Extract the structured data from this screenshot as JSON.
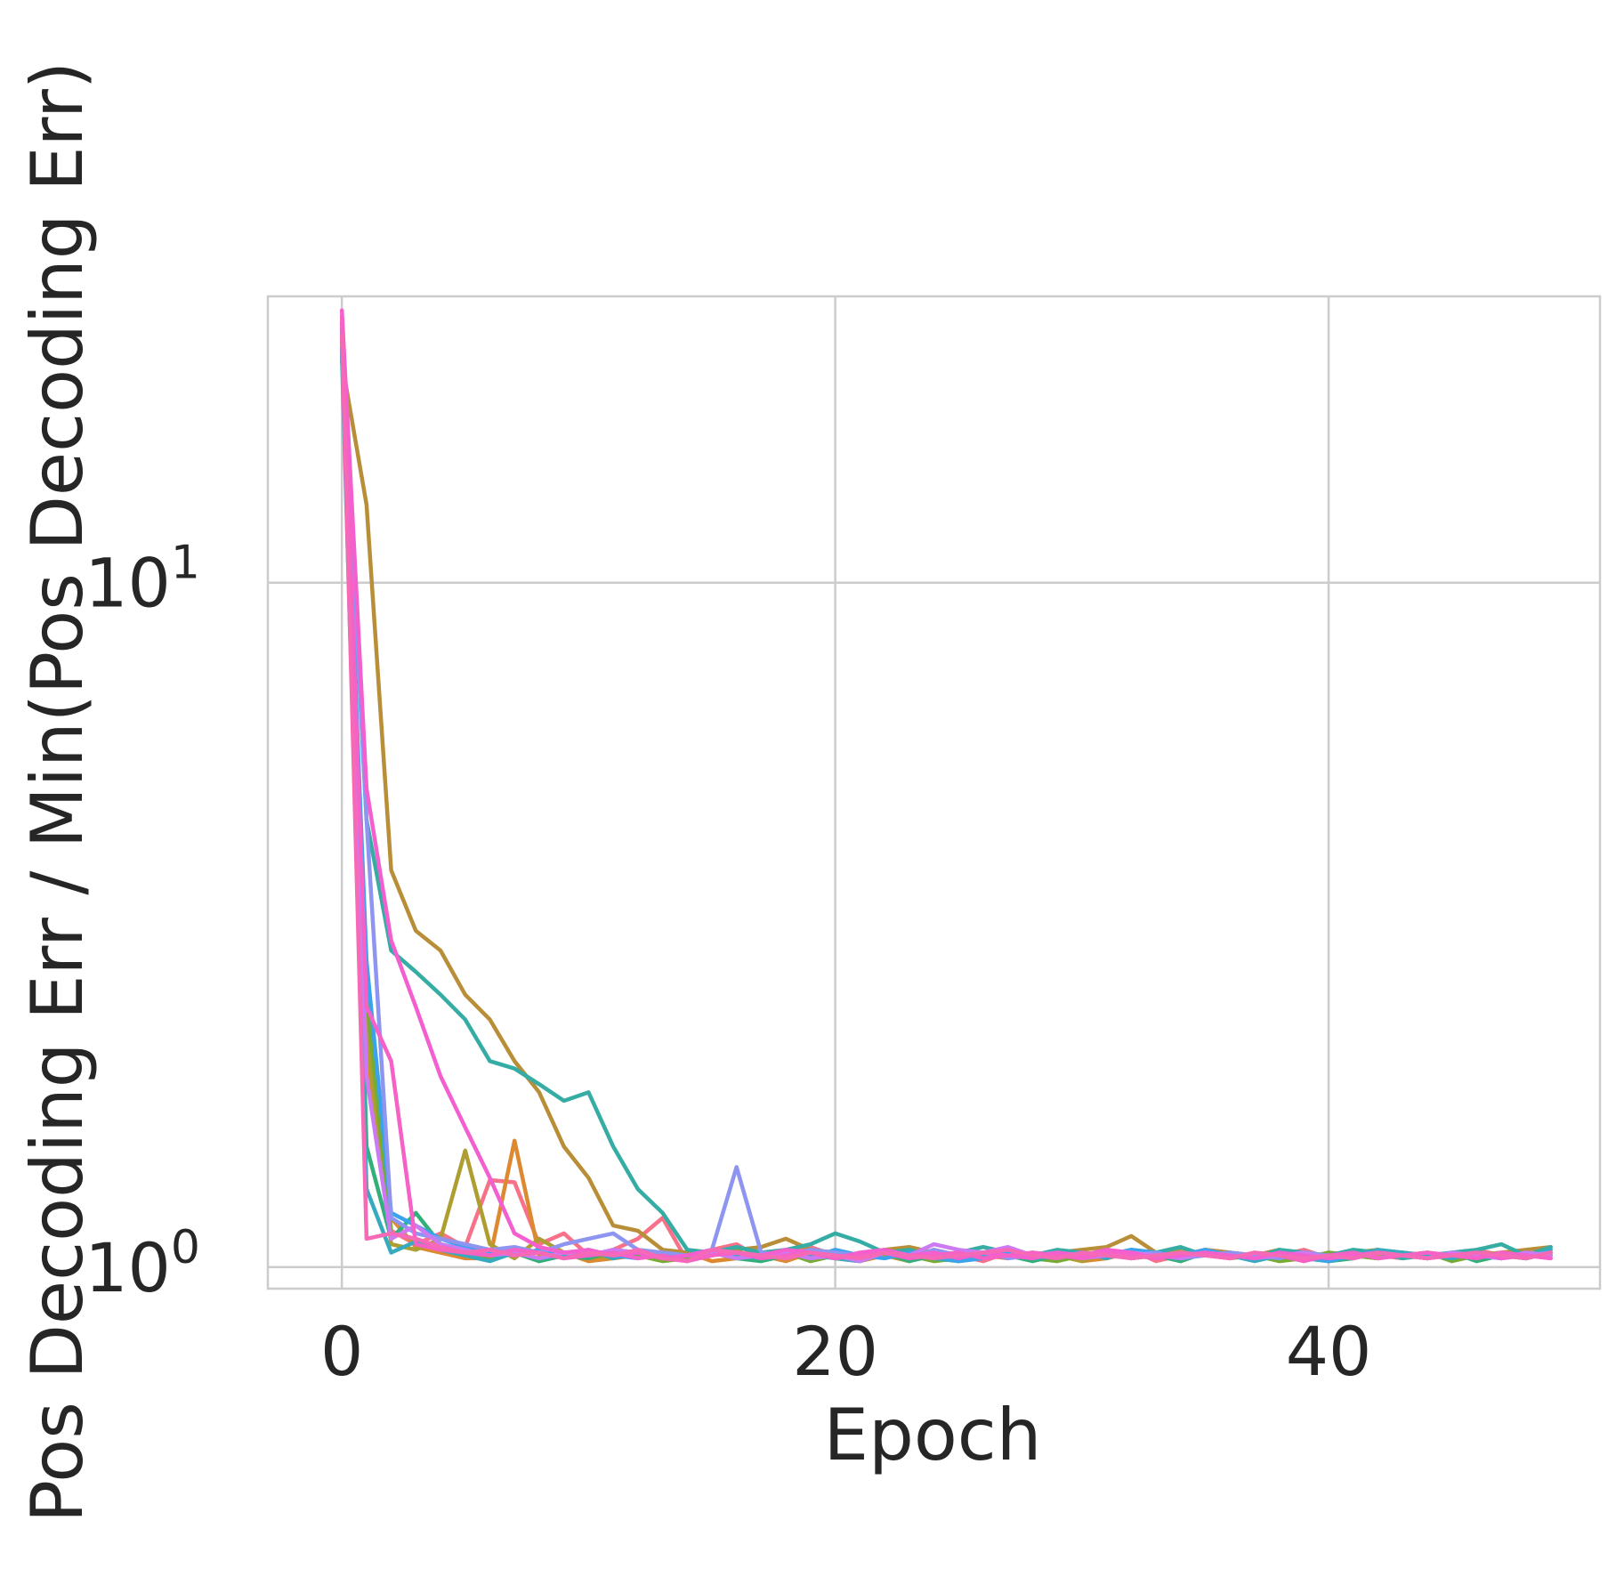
{
  "chart_data": {
    "type": "line",
    "title": "",
    "xlabel": "Epoch",
    "ylabel": "Pos Decoding Err / Min(Pos Decoding Err)",
    "xlim": [
      -3,
      51
    ],
    "ylim": [
      0.93,
      26.2
    ],
    "yscale": "log",
    "grid": true,
    "legend": "none",
    "x_ticks": [
      {
        "value": 0,
        "label": "0"
      },
      {
        "value": 20,
        "label": "20"
      },
      {
        "value": 40,
        "label": "40"
      }
    ],
    "y_ticks": [
      {
        "value": 1,
        "base": "10",
        "exp": "0"
      },
      {
        "value": 10,
        "base": "10",
        "exp": "1"
      }
    ],
    "series": [
      {
        "color": "#f77189",
        "values": [
          24.5,
          2.4,
          1.13,
          1.08,
          1.12,
          1.07,
          1.34,
          1.33,
          1.08,
          1.12,
          1.04,
          1.06,
          1.1,
          1.18,
          1.02,
          1.06,
          1.08,
          1.03,
          1.05,
          1.07,
          1.04,
          1.02,
          1.05,
          1.03,
          1.06,
          1.04,
          1.02,
          1.05,
          1.04,
          1.03,
          1.05,
          1.04,
          1.06,
          1.02,
          1.04,
          1.06,
          1.05,
          1.03,
          1.04,
          1.06,
          1.03,
          1.05,
          1.04,
          1.03,
          1.05,
          1.04,
          1.06,
          1.04,
          1.03,
          1.05
        ]
      },
      {
        "color": "#dc8932",
        "values": [
          22.0,
          2.0,
          1.18,
          1.07,
          1.05,
          1.03,
          1.03,
          1.53,
          1.04,
          1.05,
          1.02,
          1.03,
          1.04,
          1.03,
          1.05,
          1.02,
          1.03,
          1.04,
          1.02,
          1.05,
          1.03,
          1.02,
          1.04,
          1.03,
          1.05,
          1.02,
          1.04,
          1.03,
          1.05,
          1.04,
          1.02,
          1.03,
          1.05,
          1.04,
          1.03,
          1.06,
          1.04,
          1.03,
          1.05,
          1.04,
          1.02,
          1.04,
          1.03,
          1.05,
          1.04,
          1.03,
          1.04,
          1.05,
          1.03,
          1.06
        ]
      },
      {
        "color": "#ae9d31",
        "values": [
          23.0,
          2.2,
          1.08,
          1.06,
          1.1,
          1.48,
          1.08,
          1.03,
          1.1,
          1.05,
          1.04,
          1.03,
          1.05,
          1.04,
          1.03,
          1.05,
          1.04,
          1.03,
          1.06,
          1.04,
          1.05,
          1.03,
          1.04,
          1.02,
          1.05,
          1.03,
          1.04,
          1.05,
          1.03,
          1.04,
          1.02,
          1.05,
          1.04,
          1.03,
          1.06,
          1.04,
          1.05,
          1.03,
          1.04,
          1.02,
          1.05,
          1.04,
          1.03,
          1.05,
          1.04,
          1.03,
          1.05,
          1.04,
          1.03,
          1.05
        ]
      },
      {
        "color": "#b98e38",
        "values": [
          21.0,
          13.0,
          3.8,
          3.1,
          2.9,
          2.5,
          2.3,
          2.0,
          1.8,
          1.5,
          1.35,
          1.15,
          1.13,
          1.06,
          1.05,
          1.04,
          1.06,
          1.07,
          1.1,
          1.06,
          1.05,
          1.04,
          1.06,
          1.07,
          1.05,
          1.04,
          1.05,
          1.06,
          1.04,
          1.05,
          1.06,
          1.07,
          1.11,
          1.05,
          1.04,
          1.06,
          1.05,
          1.04,
          1.06,
          1.03,
          1.04,
          1.05,
          1.06,
          1.04,
          1.05,
          1.03,
          1.04,
          1.05,
          1.06,
          1.07
        ]
      },
      {
        "color": "#77ab31",
        "values": [
          22.5,
          2.5,
          1.12,
          1.1,
          1.06,
          1.04,
          1.03,
          1.05,
          1.02,
          1.04,
          1.03,
          1.05,
          1.04,
          1.02,
          1.03,
          1.05,
          1.04,
          1.03,
          1.05,
          1.02,
          1.04,
          1.03,
          1.05,
          1.04,
          1.02,
          1.03,
          1.05,
          1.04,
          1.03,
          1.02,
          1.04,
          1.05,
          1.03,
          1.04,
          1.02,
          1.05,
          1.03,
          1.04,
          1.02,
          1.03,
          1.05,
          1.04,
          1.03,
          1.04,
          1.05,
          1.02,
          1.04,
          1.03,
          1.05,
          1.04
        ]
      },
      {
        "color": "#33b07a",
        "values": [
          23.5,
          1.5,
          1.1,
          1.2,
          1.08,
          1.06,
          1.04,
          1.05,
          1.02,
          1.04,
          1.03,
          1.06,
          1.05,
          1.03,
          1.04,
          1.05,
          1.03,
          1.02,
          1.04,
          1.05,
          1.03,
          1.04,
          1.05,
          1.02,
          1.04,
          1.03,
          1.05,
          1.04,
          1.02,
          1.04,
          1.03,
          1.05,
          1.03,
          1.04,
          1.02,
          1.05,
          1.04,
          1.03,
          1.05,
          1.04,
          1.02,
          1.03,
          1.05,
          1.04,
          1.03,
          1.05,
          1.02,
          1.04,
          1.03,
          1.05
        ]
      },
      {
        "color": "#36ada4",
        "values": [
          22.0,
          4.5,
          2.9,
          2.7,
          2.5,
          2.3,
          2.0,
          1.95,
          1.85,
          1.75,
          1.8,
          1.5,
          1.3,
          1.2,
          1.06,
          1.05,
          1.07,
          1.05,
          1.06,
          1.08,
          1.12,
          1.09,
          1.05,
          1.06,
          1.04,
          1.05,
          1.07,
          1.05,
          1.04,
          1.06,
          1.05,
          1.04,
          1.06,
          1.05,
          1.07,
          1.04,
          1.05,
          1.03,
          1.06,
          1.05,
          1.04,
          1.06,
          1.05,
          1.03,
          1.04,
          1.05,
          1.06,
          1.08,
          1.04,
          1.07
        ]
      },
      {
        "color": "#38aabf",
        "values": [
          21.5,
          1.3,
          1.05,
          1.09,
          1.06,
          1.04,
          1.02,
          1.05,
          1.03,
          1.04,
          1.06,
          1.03,
          1.05,
          1.04,
          1.02,
          1.06,
          1.04,
          1.03,
          1.05,
          1.04,
          1.03,
          1.02,
          1.05,
          1.04,
          1.03,
          1.02,
          1.04,
          1.05,
          1.03,
          1.04,
          1.05,
          1.03,
          1.06,
          1.04,
          1.03,
          1.05,
          1.04,
          1.02,
          1.04,
          1.03,
          1.02,
          1.04,
          1.06,
          1.05,
          1.04,
          1.03,
          1.05,
          1.04,
          1.03,
          1.06
        ]
      },
      {
        "color": "#3ba3ec",
        "values": [
          22.0,
          2.8,
          1.2,
          1.15,
          1.1,
          1.07,
          1.05,
          1.04,
          1.06,
          1.03,
          1.05,
          1.04,
          1.03,
          1.05,
          1.04,
          1.06,
          1.03,
          1.04,
          1.05,
          1.03,
          1.06,
          1.04,
          1.03,
          1.05,
          1.04,
          1.02,
          1.03,
          1.05,
          1.04,
          1.03,
          1.05,
          1.04,
          1.06,
          1.05,
          1.04,
          1.06,
          1.04,
          1.03,
          1.05,
          1.04,
          1.02,
          1.04,
          1.05,
          1.04,
          1.03,
          1.05,
          1.04,
          1.03,
          1.05,
          1.04
        ]
      },
      {
        "color": "#8e95f0",
        "values": [
          23.0,
          4.5,
          1.18,
          1.12,
          1.1,
          1.08,
          1.06,
          1.07,
          1.05,
          1.08,
          1.1,
          1.12,
          1.06,
          1.05,
          1.04,
          1.06,
          1.4,
          1.05,
          1.04,
          1.06,
          1.05,
          1.04,
          1.05,
          1.03,
          1.06,
          1.04,
          1.05,
          1.03,
          1.04,
          1.05,
          1.03,
          1.06,
          1.04,
          1.05,
          1.03,
          1.04,
          1.05,
          1.04,
          1.03,
          1.05,
          1.04,
          1.03,
          1.05,
          1.04,
          1.03,
          1.04,
          1.05,
          1.03,
          1.04,
          1.05
        ]
      },
      {
        "color": "#cc7af4",
        "values": [
          24.0,
          1.9,
          1.1,
          1.15,
          1.08,
          1.06,
          1.04,
          1.05,
          1.03,
          1.05,
          1.04,
          1.06,
          1.05,
          1.03,
          1.04,
          1.05,
          1.03,
          1.04,
          1.05,
          1.03,
          1.04,
          1.02,
          1.05,
          1.04,
          1.08,
          1.06,
          1.05,
          1.07,
          1.04,
          1.05,
          1.03,
          1.04,
          1.05,
          1.04,
          1.03,
          1.05,
          1.04,
          1.03,
          1.04,
          1.05,
          1.03,
          1.04,
          1.05,
          1.04,
          1.03,
          1.05,
          1.04,
          1.03,
          1.05,
          1.04
        ]
      },
      {
        "color": "#f45fd0",
        "values": [
          25.0,
          5.0,
          3.0,
          2.4,
          1.9,
          1.6,
          1.35,
          1.12,
          1.07,
          1.05,
          1.06,
          1.04,
          1.05,
          1.03,
          1.04,
          1.06,
          1.05,
          1.04,
          1.06,
          1.05,
          1.03,
          1.05,
          1.06,
          1.04,
          1.05,
          1.03,
          1.05,
          1.04,
          1.03,
          1.05,
          1.04,
          1.06,
          1.05,
          1.03,
          1.04,
          1.05,
          1.04,
          1.03,
          1.05,
          1.04,
          1.03,
          1.04,
          1.05,
          1.04,
          1.03,
          1.04,
          1.05,
          1.03,
          1.04,
          1.03
        ]
      },
      {
        "color": "#f561c6",
        "values": [
          24.0,
          2.4,
          2.0,
          1.08,
          1.06,
          1.05,
          1.04,
          1.06,
          1.05,
          1.03,
          1.04,
          1.05,
          1.03,
          1.04,
          1.02,
          1.04,
          1.05,
          1.03,
          1.04,
          1.05,
          1.03,
          1.04,
          1.05,
          1.03,
          1.04,
          1.05,
          1.03,
          1.04,
          1.05,
          1.04,
          1.03,
          1.05,
          1.04,
          1.03,
          1.05,
          1.04,
          1.03,
          1.05,
          1.04,
          1.02,
          1.04,
          1.05,
          1.03,
          1.04,
          1.05,
          1.04,
          1.03,
          1.05,
          1.04,
          1.03
        ]
      },
      {
        "color": "#f669b7",
        "values": [
          23.0,
          1.1,
          1.12,
          1.1,
          1.07,
          1.05,
          1.06,
          1.04,
          1.05,
          1.03,
          1.05,
          1.04,
          1.06,
          1.03,
          1.02,
          1.06,
          1.05,
          1.04,
          1.03,
          1.05,
          1.04,
          1.03,
          1.05,
          1.04,
          1.03,
          1.04,
          1.05,
          1.06,
          1.04,
          1.03,
          1.05,
          1.04,
          1.03,
          1.04,
          1.05,
          1.04,
          1.03,
          1.05,
          1.04,
          1.03,
          1.04,
          1.03,
          1.05,
          1.04,
          1.03,
          1.04,
          1.05,
          1.04,
          1.03,
          1.05
        ]
      }
    ]
  }
}
